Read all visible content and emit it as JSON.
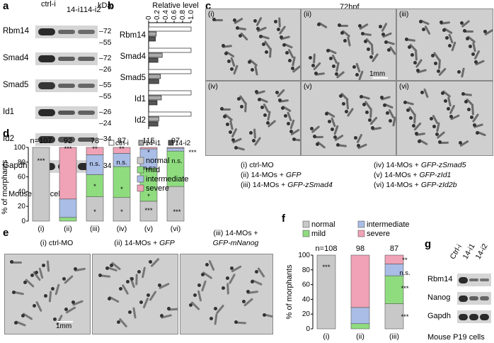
{
  "panel_labels": {
    "a": "a",
    "b": "b",
    "c": "c",
    "d": "d",
    "e": "e",
    "f": "f",
    "g": "g"
  },
  "panel_a": {
    "lanes": [
      "ctrl-i",
      "14-i1",
      "14-i2"
    ],
    "kda_label": "kDa",
    "rows": [
      {
        "name": "Rbm14",
        "marker": "72"
      },
      {
        "name": "Smad4",
        "marker": "72"
      },
      {
        "name": "Smad5",
        "marker": "55"
      },
      {
        "name": "Id1",
        "marker": "26"
      },
      {
        "name": "Id2",
        "marker": "34"
      },
      {
        "name": "Gapdh",
        "marker": "34"
      }
    ],
    "marker_extra": [
      "55",
      "26",
      "55",
      "24"
    ],
    "caption": "Mouse P19 cells"
  },
  "panel_b": {
    "title": "Relative level",
    "legend": [
      "ctrl-i",
      "14-i1",
      "14-i2"
    ],
    "colors": [
      "#ffffff",
      "#aaaaaa",
      "#555555"
    ],
    "chart_data": {
      "type": "bar",
      "orientation": "horizontal",
      "categories": [
        "Rbm14",
        "Smad4",
        "Smad5",
        "Id1",
        "Id2"
      ],
      "series": [
        {
          "name": "ctrl-i",
          "values": [
            1.0,
            1.0,
            1.0,
            1.0,
            1.0
          ]
        },
        {
          "name": "14-i1",
          "values": [
            0.18,
            0.32,
            0.28,
            0.3,
            0.24
          ]
        },
        {
          "name": "14-i2",
          "values": [
            0.16,
            0.22,
            0.24,
            0.2,
            0.22
          ]
        }
      ],
      "ticks": [
        "0",
        "0.2",
        "0.4",
        "0.6",
        "0.8",
        "1.0"
      ],
      "xlim": [
        0,
        1.0
      ]
    }
  },
  "panel_c": {
    "title": "72hpf",
    "scale": "1mm",
    "panels": [
      "(i)",
      "(ii)",
      "(iii)",
      "(iv)",
      "(v)",
      "(vi)"
    ],
    "legend_left": [
      {
        "pre": "(i) ctrl-MO",
        "gene": ""
      },
      {
        "pre": "(ii) 14-MOs + ",
        "gene": "GFP"
      },
      {
        "pre": "(iii) 14-MOs + ",
        "gene": "GFP-zSmad4"
      }
    ],
    "legend_right": [
      {
        "pre": "(iv) 14-MOs + ",
        "gene": "GFP-zSmad5"
      },
      {
        "pre": "(v) 14-MOs + ",
        "gene": "GFP-zId1"
      },
      {
        "pre": "(vi) 14-MOs + ",
        "gene": "GFP-zId2b"
      }
    ]
  },
  "panel_d": {
    "ylabel": "% of morphants",
    "n_labels": [
      "n=107",
      "92",
      "78",
      "87",
      "115",
      "97"
    ],
    "categories": [
      "(i)",
      "(ii)",
      "(iii)",
      "(iv)",
      "(v)",
      "(vi)"
    ],
    "legend": [
      "normal",
      "mild",
      "intermediate",
      "severe"
    ],
    "colors": {
      "normal": "#c8c8c8",
      "mild": "#8fdc7f",
      "intermediate": "#a9bde6",
      "severe": "#f0a2b6"
    },
    "annotations": [
      "***",
      "***",
      "**",
      "n.s.",
      "*",
      "*",
      "**",
      "n.s.",
      "*",
      "*",
      "*",
      "n.s.",
      "*",
      "***",
      "n.s.",
      "***",
      "***"
    ],
    "chart_data": {
      "type": "bar",
      "stacked": true,
      "categories": [
        "(i)",
        "(ii)",
        "(iii)",
        "(iv)",
        "(v)",
        "(vi)"
      ],
      "series": [
        {
          "name": "normal",
          "values": [
            100,
            0,
            33,
            32,
            27,
            47
          ]
        },
        {
          "name": "mild",
          "values": [
            0,
            5,
            30,
            42,
            45,
            48
          ]
        },
        {
          "name": "intermediate",
          "values": [
            0,
            25,
            27,
            18,
            26,
            4
          ]
        },
        {
          "name": "severe",
          "values": [
            0,
            70,
            10,
            8,
            2,
            1
          ]
        }
      ],
      "ylim": [
        0,
        100
      ],
      "ticks": [
        "0",
        "20",
        "40",
        "60",
        "80",
        "100"
      ]
    }
  },
  "panel_e": {
    "panels": [
      {
        "pre": "(i) ctrl-MO",
        "gene": ""
      },
      {
        "pre": "(ii) 14-MOs + ",
        "gene": "GFP"
      },
      {
        "pre": "(iii) 14-MOs +",
        "gene": "GFP-mNanog"
      }
    ],
    "scale": "1mm"
  },
  "panel_f": {
    "ylabel": "% of morphants",
    "legend": [
      "normal",
      "intermediate",
      "mild",
      "severe"
    ],
    "n_labels": [
      "n=108",
      "98",
      "87"
    ],
    "categories": [
      "(i)",
      "(ii)",
      "(iii)"
    ],
    "annotations": [
      "***",
      "**",
      "n.s.",
      "***",
      "***"
    ],
    "chart_data": {
      "type": "bar",
      "stacked": true,
      "categories": [
        "(i)",
        "(ii)",
        "(iii)"
      ],
      "series": [
        {
          "name": "normal",
          "values": [
            100,
            0,
            34
          ]
        },
        {
          "name": "mild",
          "values": [
            0,
            7,
            38
          ]
        },
        {
          "name": "intermediate",
          "values": [
            0,
            22,
            16
          ]
        },
        {
          "name": "severe",
          "values": [
            0,
            71,
            12
          ]
        }
      ],
      "ylim": [
        0,
        100
      ],
      "ticks": [
        "0",
        "20",
        "40",
        "60",
        "80",
        "100"
      ]
    }
  },
  "panel_g": {
    "lanes": [
      "Ctrl-i",
      "14-i1",
      "14-i2"
    ],
    "rows": [
      "Rbm14",
      "Nanog",
      "Gapdh"
    ],
    "caption": "Mouse P19 cells"
  }
}
